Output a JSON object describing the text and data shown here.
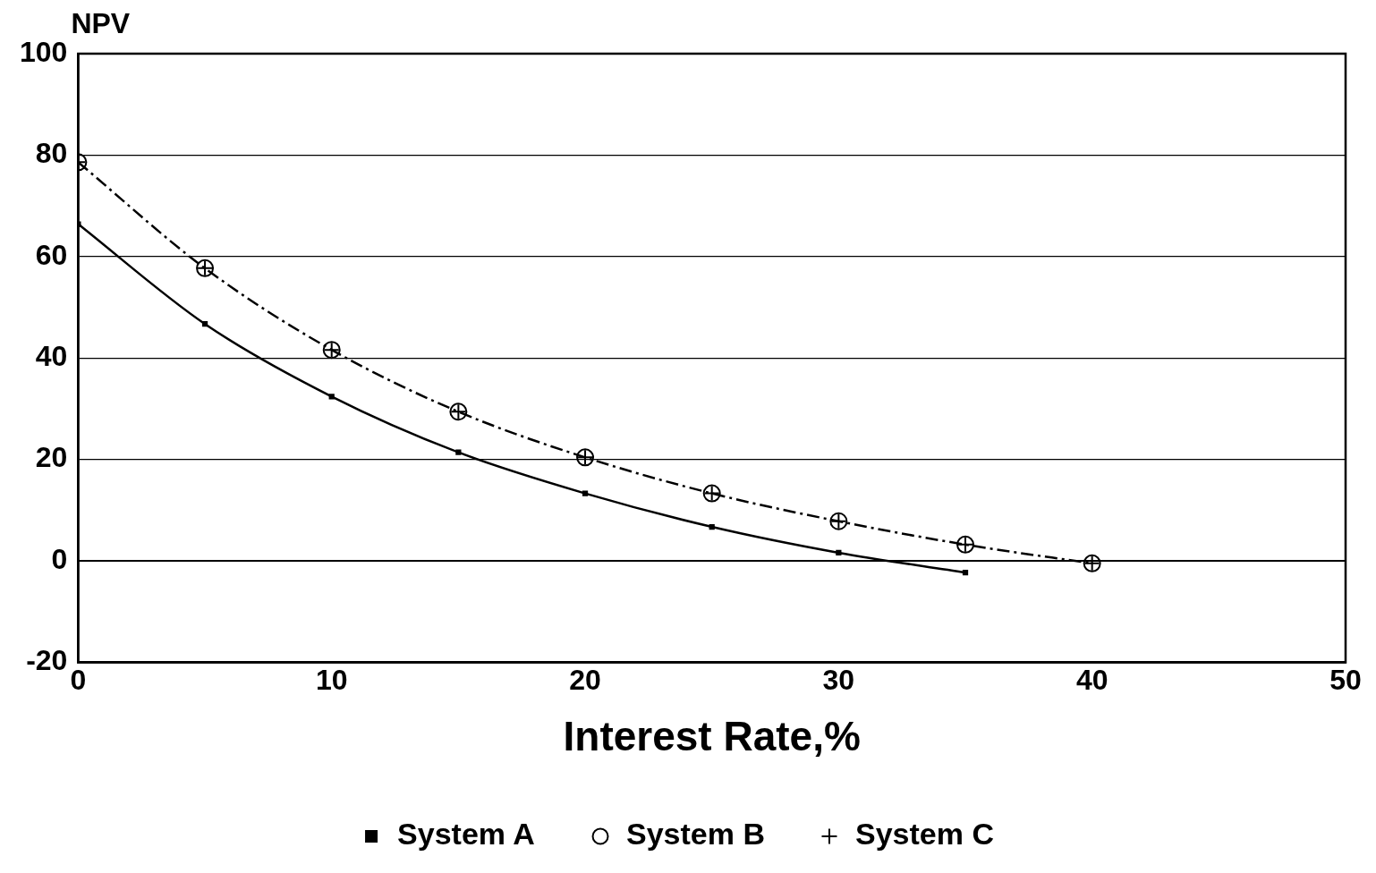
{
  "chart_data": {
    "type": "line",
    "xlabel": "Interest Rate,%",
    "ylabel": "NPV",
    "x": [
      0,
      5,
      10,
      15,
      20,
      25,
      30,
      35,
      40
    ],
    "series": [
      {
        "name": "System A",
        "color": "#000000",
        "marker": "square",
        "line_style": "solid",
        "values": [
          66.4,
          46.7,
          32.4,
          21.4,
          13.3,
          6.7,
          1.6,
          -2.3,
          null
        ]
      },
      {
        "name": "System B",
        "color": "#000000",
        "marker": "circle",
        "line_style": "dashed",
        "values": [
          78.6,
          57.7,
          41.6,
          29.4,
          20.4,
          13.3,
          7.8,
          3.2,
          -0.5
        ]
      },
      {
        "name": "System C",
        "type": "scatter",
        "color": "#000000",
        "marker": "cross",
        "values": [
          78.6,
          57.7,
          41.6,
          29.4,
          20.4,
          13.3,
          7.8,
          3.2,
          -0.5
        ]
      }
    ],
    "xlim": [
      0,
      50
    ],
    "xticks": [
      0,
      10,
      20,
      30,
      40,
      50
    ],
    "ylim": [
      -20,
      100
    ],
    "yticks": [
      -20,
      0,
      20,
      40,
      60,
      80,
      100
    ],
    "grid": "y",
    "legend": "bottom",
    "ref_lines": [
      {
        "axis": "y",
        "value": 0,
        "color": "#000000",
        "line_style": "solid"
      }
    ]
  }
}
